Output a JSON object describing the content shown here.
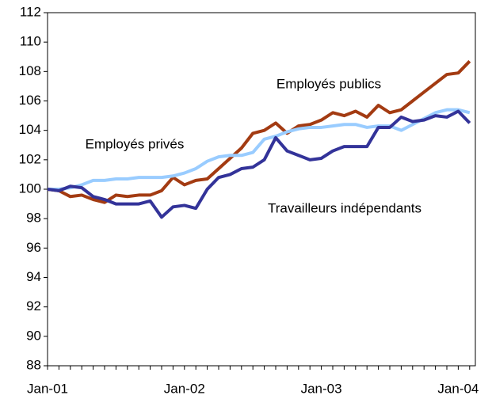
{
  "chart_data": {
    "type": "line",
    "categories": [
      "Jan-01",
      null,
      null,
      null,
      null,
      null,
      null,
      null,
      null,
      null,
      null,
      null,
      "Jan-02",
      null,
      null,
      null,
      null,
      null,
      null,
      null,
      null,
      null,
      null,
      null,
      "Jan-03",
      null,
      null,
      null,
      null,
      null,
      null,
      null,
      null,
      null,
      null,
      null,
      "Jan-04",
      null
    ],
    "series": [
      {
        "name": "Employés publics",
        "color": "#a33b12",
        "values": [
          100,
          99.9,
          99.5,
          99.6,
          99.3,
          99.1,
          99.6,
          99.5,
          99.6,
          99.6,
          99.9,
          100.8,
          100.3,
          100.6,
          100.7,
          101.4,
          102.1,
          102.8,
          103.8,
          104.0,
          104.5,
          103.8,
          104.3,
          104.4,
          104.7,
          105.2,
          105.0,
          105.3,
          104.9,
          105.7,
          105.2,
          105.4,
          106.0,
          106.6,
          107.2,
          107.8,
          107.9,
          108.7
        ]
      },
      {
        "name": "Employés privés",
        "color": "#99ccff",
        "values": [
          100,
          100,
          100.1,
          100.3,
          100.6,
          100.6,
          100.7,
          100.7,
          100.8,
          100.8,
          100.8,
          100.9,
          101.1,
          101.4,
          101.9,
          102.2,
          102.3,
          102.3,
          102.5,
          103.4,
          103.6,
          103.9,
          104.1,
          104.2,
          104.2,
          104.3,
          104.4,
          104.4,
          104.2,
          104.3,
          104.3,
          104.0,
          104.4,
          104.8,
          105.2,
          105.4,
          105.4,
          105.2
        ]
      },
      {
        "name": "Travailleurs indépendants",
        "color": "#333399",
        "values": [
          100,
          99.9,
          100.2,
          100.1,
          99.5,
          99.3,
          99.0,
          99.0,
          99.0,
          99.2,
          98.1,
          98.8,
          98.9,
          98.7,
          100.0,
          100.8,
          101.0,
          101.4,
          101.5,
          102.0,
          103.5,
          102.6,
          102.3,
          102.0,
          102.1,
          102.6,
          102.9,
          102.9,
          102.9,
          104.2,
          104.2,
          104.9,
          104.6,
          104.7,
          105.0,
          104.9,
          105.3,
          104.5
        ]
      }
    ],
    "ylim": [
      88,
      112
    ],
    "yticks": [
      88,
      90,
      92,
      94,
      96,
      98,
      100,
      102,
      104,
      106,
      108,
      110,
      112
    ],
    "grid": false
  }
}
